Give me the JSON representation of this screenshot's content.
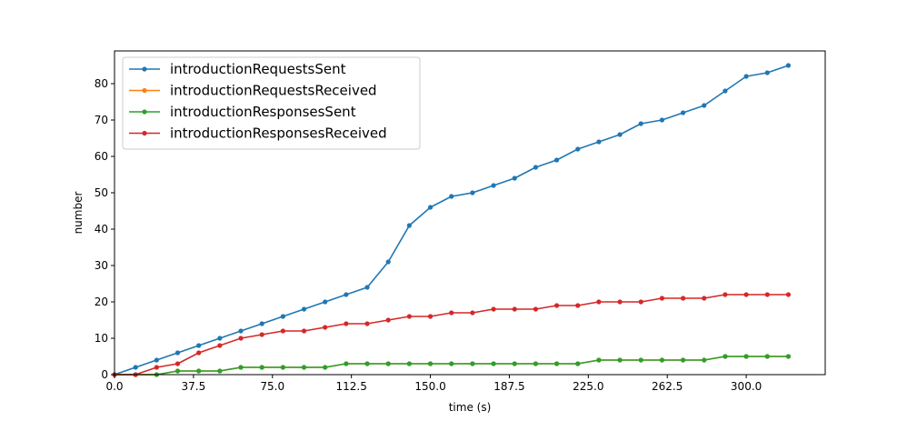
{
  "chart_data": {
    "type": "line",
    "xlabel": "time (s)",
    "ylabel": "number",
    "xlim": [
      0,
      337.5
    ],
    "ylim": [
      0,
      89
    ],
    "xticks": [
      0,
      37.5,
      75,
      112.5,
      150,
      187.5,
      225,
      262.5,
      300
    ],
    "xtick_labels": [
      "0.0",
      "37.5",
      "75.0",
      "112.5",
      "150.0",
      "187.5",
      "225.0",
      "262.5",
      "300.0"
    ],
    "yticks": [
      0,
      10,
      20,
      30,
      40,
      50,
      60,
      70,
      80
    ],
    "ytick_labels": [
      "0",
      "10",
      "20",
      "30",
      "40",
      "50",
      "60",
      "70",
      "80"
    ],
    "legend_position": "top-left",
    "grid": false,
    "x": [
      0,
      10,
      20,
      30,
      40,
      50,
      60,
      70,
      80,
      90,
      100,
      110,
      120,
      130,
      140,
      150,
      160,
      170,
      180,
      190,
      200,
      210,
      220,
      230,
      240,
      250,
      260,
      270,
      280,
      290,
      300,
      310,
      320
    ],
    "series": [
      {
        "name": "introductionRequestsSent",
        "color": "#1f77b4",
        "values": [
          0,
          2,
          4,
          6,
          8,
          10,
          12,
          14,
          16,
          18,
          20,
          22,
          24,
          31,
          41,
          46,
          49,
          50,
          52,
          54,
          57,
          59,
          62,
          64,
          66,
          69,
          70,
          72,
          74,
          78,
          82,
          83,
          85
        ]
      },
      {
        "name": "introductionRequestsReceived",
        "color": "#ff7f0e",
        "values": [
          0,
          0,
          0,
          1,
          1,
          1,
          2,
          2,
          2,
          2,
          2,
          3,
          3,
          3,
          3,
          3,
          3,
          3,
          3,
          3,
          3,
          3,
          3,
          4,
          4,
          4,
          4,
          4,
          4,
          5,
          5,
          5,
          5
        ]
      },
      {
        "name": "introductionResponsesSent",
        "color": "#2ca02c",
        "values": [
          0,
          0,
          0,
          1,
          1,
          1,
          2,
          2,
          2,
          2,
          2,
          3,
          3,
          3,
          3,
          3,
          3,
          3,
          3,
          3,
          3,
          3,
          3,
          4,
          4,
          4,
          4,
          4,
          4,
          5,
          5,
          5,
          5
        ]
      },
      {
        "name": "introductionResponsesReceived",
        "color": "#d62728",
        "values": [
          0,
          0,
          2,
          3,
          6,
          8,
          10,
          11,
          12,
          12,
          13,
          14,
          14,
          15,
          16,
          16,
          17,
          17,
          18,
          18,
          18,
          19,
          19,
          20,
          20,
          20,
          21,
          21,
          21,
          22,
          22,
          22,
          22
        ]
      }
    ]
  }
}
